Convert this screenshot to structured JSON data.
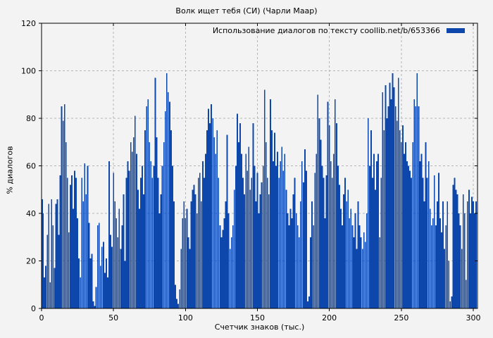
{
  "title": "Волк ищет тебя (СИ) (Чарли Маар)",
  "legend": {
    "label": "Использование диалогов по тексту coollib.net/b/653366",
    "swatch_color": "#0d47ab"
  },
  "colors": {
    "background": "#f3f3f3",
    "grid": "#b5b5b5",
    "axis": "#000000",
    "bar": "#0d47ab"
  },
  "chart_data": {
    "type": "bar",
    "title": "Волк ищет тебя (СИ) (Чарли Маар)",
    "xlabel": "Счетчик знаков (тыс.)",
    "ylabel": "% диалогов",
    "xlim": [
      0,
      303
    ],
    "ylim": [
      0,
      120
    ],
    "x_ticks": [
      0,
      50,
      100,
      150,
      200,
      250,
      300
    ],
    "y_ticks": [
      0,
      20,
      40,
      60,
      80,
      100,
      120
    ],
    "grid": true,
    "legend_position": "top-right-inside",
    "series": [
      {
        "name": "Использование диалогов по тексту coollib.net/b/653366",
        "color": "#0d47ab",
        "x_start": 0,
        "x_step": 1,
        "values": [
          46,
          40,
          13,
          18,
          31,
          44,
          11,
          46,
          35,
          17,
          44,
          46,
          31,
          56,
          85,
          79,
          86,
          70,
          55,
          32,
          52,
          56,
          42,
          58,
          55,
          38,
          21,
          13,
          55,
          45,
          61,
          48,
          60,
          36,
          21,
          23,
          3,
          1,
          9,
          35,
          36,
          18,
          26,
          28,
          15,
          21,
          13,
          62,
          31,
          26,
          57,
          45,
          38,
          30,
          42,
          25,
          35,
          48,
          20,
          55,
          62,
          58,
          70,
          66,
          72,
          81,
          65,
          50,
          42,
          55,
          60,
          48,
          75,
          85,
          88,
          70,
          62,
          55,
          60,
          97,
          72,
          55,
          40,
          48,
          60,
          70,
          83,
          99,
          91,
          87,
          75,
          60,
          45,
          10,
          4,
          2,
          8,
          25,
          38,
          45,
          38,
          42,
          30,
          25,
          45,
          50,
          52,
          48,
          40,
          55,
          57,
          45,
          62,
          55,
          65,
          75,
          84,
          78,
          86,
          80,
          72,
          65,
          75,
          55,
          35,
          30,
          33,
          38,
          45,
          73,
          40,
          25,
          30,
          35,
          50,
          60,
          82,
          70,
          78,
          65,
          55,
          48,
          65,
          58,
          68,
          50,
          55,
          78,
          60,
          45,
          57,
          40,
          48,
          53,
          60,
          92,
          70,
          55,
          48,
          88,
          75,
          62,
          74,
          60,
          66,
          55,
          62,
          68,
          58,
          65,
          50,
          40,
          35,
          42,
          38,
          48,
          55,
          40,
          35,
          30,
          45,
          62,
          53,
          67,
          58,
          3,
          5,
          30,
          45,
          35,
          57,
          65,
          90,
          80,
          71,
          60,
          55,
          38,
          56,
          87,
          77,
          62,
          55,
          65,
          88,
          78,
          60,
          52,
          42,
          35,
          48,
          55,
          45,
          50,
          38,
          42,
          35,
          30,
          40,
          25,
          45,
          35,
          30,
          25,
          32,
          28,
          40,
          80,
          60,
          75,
          55,
          65,
          50,
          62,
          65,
          30,
          55,
          91,
          75,
          94,
          80,
          85,
          95,
          88,
          99,
          93,
          85,
          79,
          97,
          75,
          70,
          77,
          65,
          70,
          62,
          60,
          58,
          55,
          70,
          88,
          85,
          99,
          85,
          62,
          65,
          55,
          45,
          70,
          55,
          62,
          42,
          35,
          38,
          56,
          35,
          45,
          57,
          38,
          32,
          45,
          25,
          35,
          45,
          20,
          3,
          5,
          52,
          55,
          50,
          48,
          40,
          35,
          25,
          48,
          40,
          12,
          45,
          50,
          40,
          47,
          45,
          40,
          45
        ]
      }
    ]
  }
}
